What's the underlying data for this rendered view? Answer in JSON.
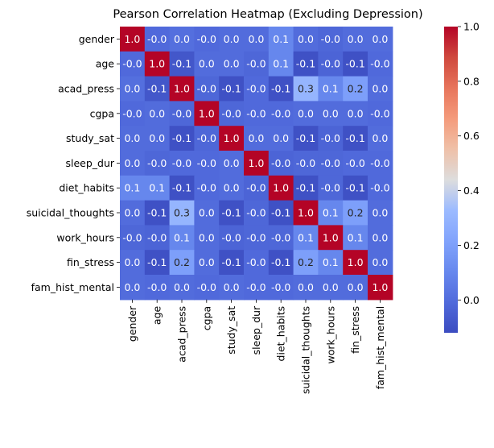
{
  "chart_data": {
    "type": "heatmap",
    "title": "Pearson Correlation Heatmap (Excluding Depression)",
    "labels": [
      "gender",
      "age",
      "acad_press",
      "cgpa",
      "study_sat",
      "sleep_dur",
      "diet_habits",
      "suicidal_thoughts",
      "work_hours",
      "fin_stress",
      "fam_hist_mental"
    ],
    "matrix": [
      [
        1.0,
        -0.01,
        0.01,
        -0.01,
        0.0,
        0.0,
        0.1,
        0.0,
        -0.02,
        0.0,
        0.0
      ],
      [
        -0.01,
        1.0,
        -0.08,
        0.0,
        0.0,
        -0.02,
        0.1,
        -0.1,
        -0.03,
        -0.1,
        -0.01
      ],
      [
        0.01,
        -0.08,
        1.0,
        -0.02,
        -0.1,
        -0.01,
        -0.1,
        0.3,
        0.1,
        0.2,
        0.0
      ],
      [
        -0.01,
        0.0,
        -0.02,
        1.0,
        -0.02,
        -0.01,
        -0.01,
        0.0,
        0.0,
        0.0,
        -0.01
      ],
      [
        0.0,
        0.0,
        -0.1,
        -0.02,
        1.0,
        0.0,
        0.0,
        -0.1,
        -0.03,
        -0.1,
        0.0
      ],
      [
        0.0,
        -0.02,
        -0.01,
        -0.01,
        0.0,
        1.0,
        -0.03,
        -0.02,
        -0.02,
        -0.01,
        -0.01
      ],
      [
        0.1,
        0.1,
        -0.1,
        -0.01,
        0.0,
        -0.03,
        1.0,
        -0.1,
        -0.02,
        -0.1,
        -0.01
      ],
      [
        0.0,
        -0.1,
        0.3,
        0.0,
        -0.1,
        -0.02,
        -0.1,
        1.0,
        0.1,
        0.2,
        0.0
      ],
      [
        -0.02,
        -0.03,
        0.1,
        0.0,
        -0.03,
        -0.02,
        -0.02,
        0.1,
        1.0,
        0.1,
        0.0
      ],
      [
        0.0,
        -0.1,
        0.2,
        0.0,
        -0.1,
        -0.01,
        -0.1,
        0.2,
        0.1,
        1.0,
        0.0
      ],
      [
        0.0,
        -0.01,
        0.0,
        -0.01,
        0.0,
        -0.01,
        -0.01,
        0.0,
        0.0,
        0.0,
        1.0
      ]
    ],
    "colormap": "coolwarm",
    "vmin": -0.12,
    "vmax": 1.0,
    "colorbar_ticks": [
      "1.0",
      "0.8",
      "0.6",
      "0.4",
      "0.2",
      "0.0"
    ],
    "colorbar_tick_values": [
      1.0,
      0.8,
      0.6,
      0.4,
      0.2,
      0.0
    ],
    "annotation_format": "1 decimal",
    "grid": false,
    "legend": "colorbar right"
  }
}
